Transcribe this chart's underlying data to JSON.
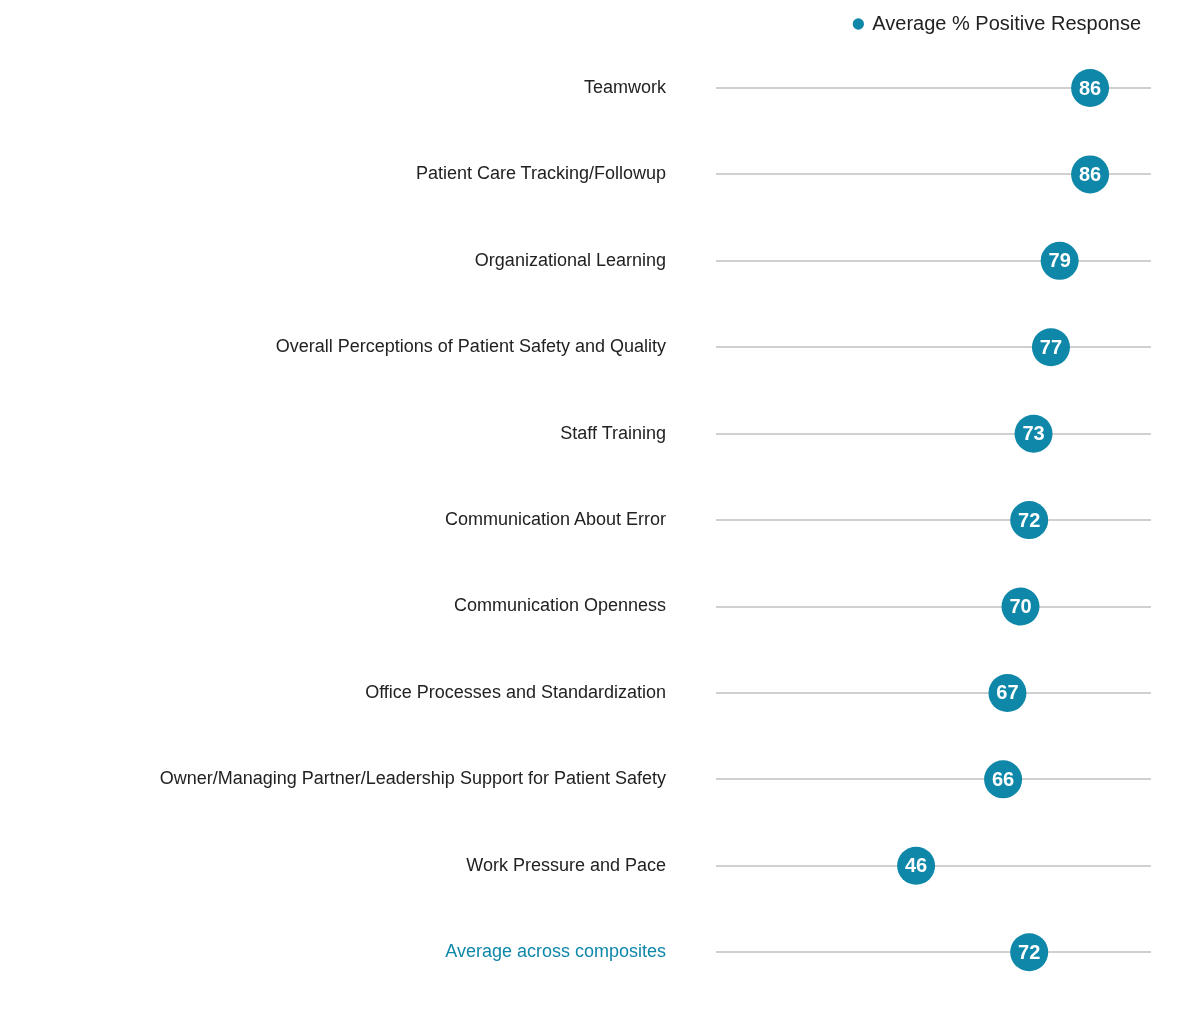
{
  "chart_data": {
    "type": "scatter",
    "orientation": "horizontal",
    "categories": [
      "Teamwork",
      "Patient Care Tracking/Followup",
      "Organizational Learning",
      "Overall Perceptions of Patient Safety and Quality",
      "Staff Training",
      "Communication About Error",
      "Communication Openness",
      "Office Processes and Standardization",
      "Owner/Managing Partner/Leadership Support for Patient Safety",
      "Work Pressure and Pace",
      "Average across composites"
    ],
    "series": [
      {
        "name": "Average % Positive Response",
        "color": "#0e87a8",
        "values": [
          86,
          86,
          79,
          77,
          73,
          72,
          70,
          67,
          66,
          46,
          72
        ]
      }
    ],
    "xlim": [
      0,
      100
    ],
    "tick_labels": "y",
    "grid": "y",
    "legend": "top right",
    "marker": "circle",
    "data_labels": true
  }
}
